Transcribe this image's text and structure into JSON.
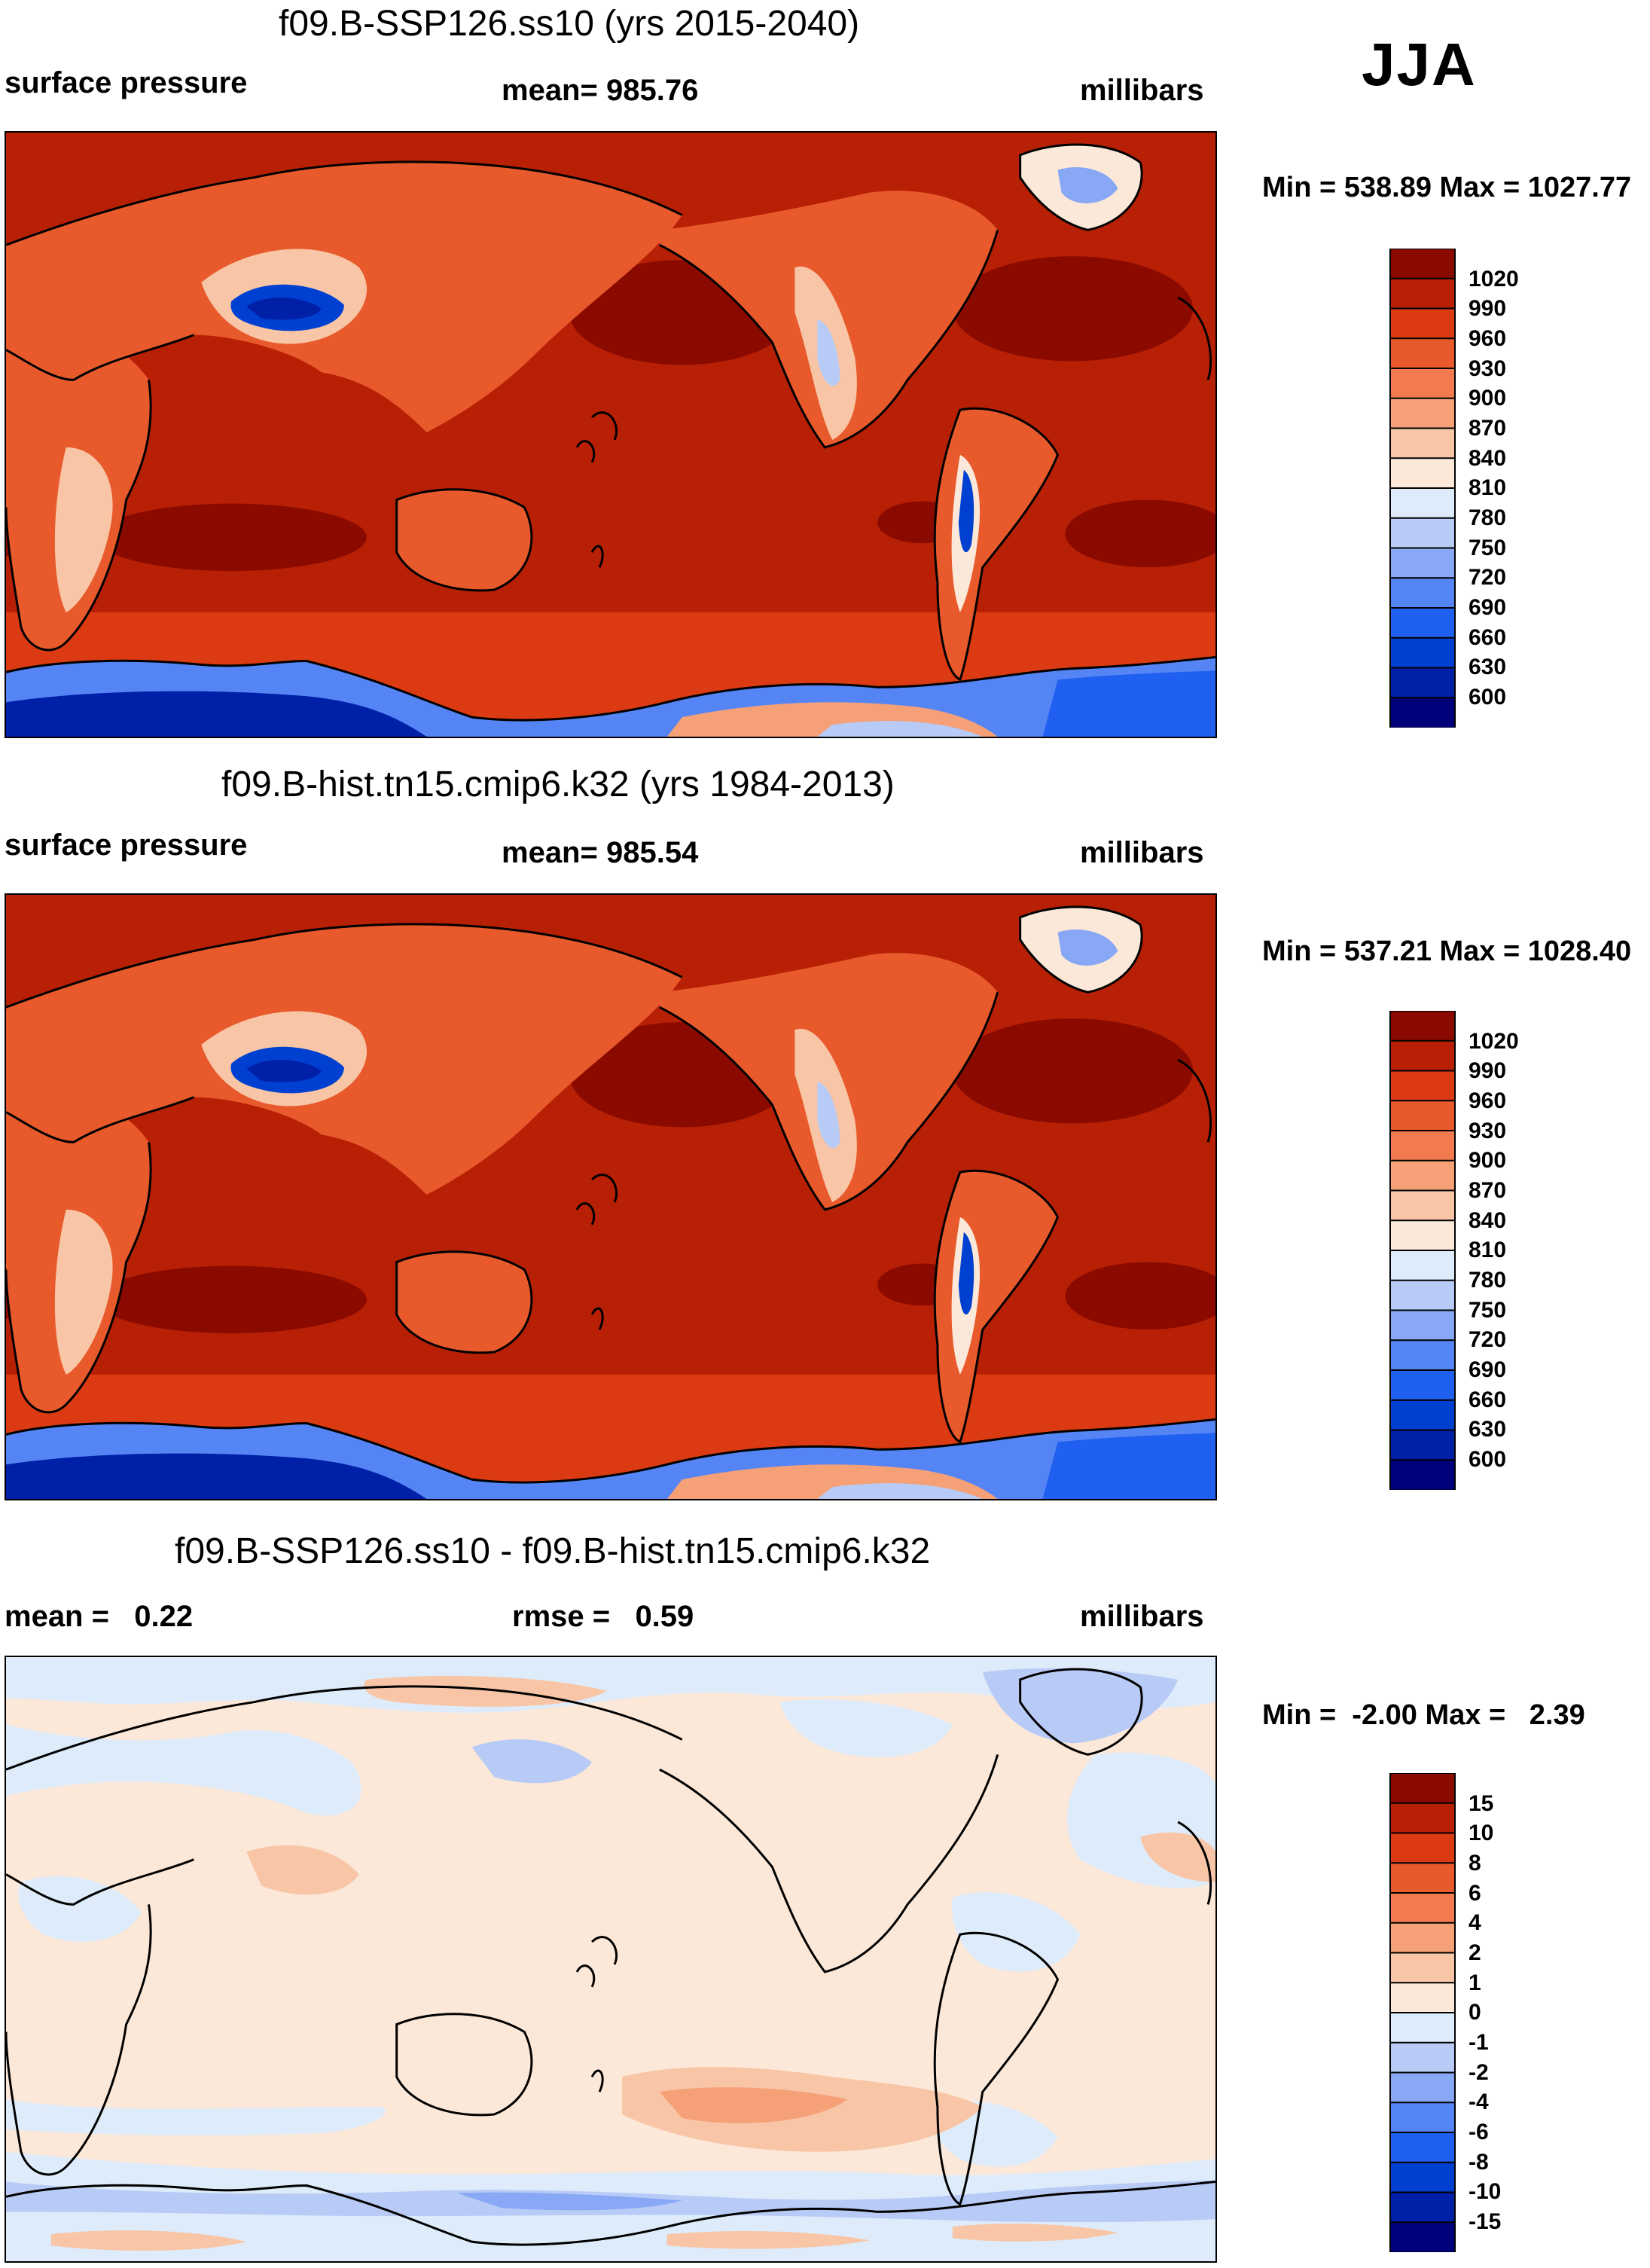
{
  "season": "JJA",
  "colors": {
    "abs": [
      "#00007a",
      "#0020a8",
      "#0040d0",
      "#2060f0",
      "#5585f5",
      "#88a8f5",
      "#b8cbf6",
      "#deebfa",
      "#fce8d8",
      "#f8c6a6",
      "#f5a077",
      "#f17a4e",
      "#e85a2c",
      "#db3a12",
      "#b82005",
      "#8b0a00"
    ],
    "diff": [
      "#00007a",
      "#0020a8",
      "#0040d0",
      "#2060f0",
      "#5585f5",
      "#88a8f5",
      "#b8cbf6",
      "#deebfa",
      "#fce8d8",
      "#f8c6a6",
      "#f5a077",
      "#f17a4e",
      "#e85a2c",
      "#db3a12",
      "#b82005",
      "#8b0a00"
    ]
  },
  "panels": [
    {
      "title": "f09.B-SSP126.ss10 (yrs 2015-2040)",
      "left_label": "surface pressure",
      "center_label": "mean= 985.76",
      "right_label": "millibars",
      "minmax": "Min = 538.89 Max = 1027.77",
      "colorbar_labels": [
        "1020",
        "990",
        "960",
        "930",
        "900",
        "870",
        "840",
        "810",
        "780",
        "750",
        "720",
        "690",
        "660",
        "630",
        "600"
      ]
    },
    {
      "title": "f09.B-hist.tn15.cmip6.k32 (yrs 1984-2013)",
      "left_label": "surface pressure",
      "center_label": "mean= 985.54",
      "right_label": "millibars",
      "minmax": "Min = 537.21 Max = 1028.40",
      "colorbar_labels": [
        "1020",
        "990",
        "960",
        "930",
        "900",
        "870",
        "840",
        "810",
        "780",
        "750",
        "720",
        "690",
        "660",
        "630",
        "600"
      ]
    },
    {
      "title": "f09.B-SSP126.ss10 - f09.B-hist.tn15.cmip6.k32",
      "left_label": "mean =   0.22",
      "center_label": "rmse =   0.59",
      "right_label": "millibars",
      "minmax": "Min =  -2.00 Max =   2.39",
      "colorbar_labels": [
        "15",
        "10",
        "8",
        "6",
        "4",
        "2",
        "1",
        "0",
        "-1",
        "-2",
        "-4",
        "-6",
        "-8",
        "-10",
        "-15"
      ]
    }
  ]
}
